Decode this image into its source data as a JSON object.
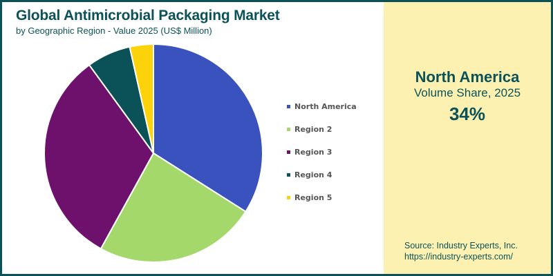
{
  "header": {
    "title": "Global Antimicrobial Packaging Market",
    "subtitle": "by Geographic Region - Value 2025 (US$ Million)"
  },
  "legend": {
    "items": [
      {
        "label": "North America",
        "color": "#3a52be"
      },
      {
        "label": "Region 2",
        "color": "#a5d86a"
      },
      {
        "label": "Region 3",
        "color": "#6d116c"
      },
      {
        "label": "Region 4",
        "color": "#0b5258"
      },
      {
        "label": "Region 5",
        "color": "#fcd20a"
      }
    ]
  },
  "highlight": {
    "region": "North America",
    "metric": "Volume Share, 2025",
    "value": "34%"
  },
  "source": {
    "line1": "Source: Industry Experts, Inc.",
    "line2": "https://industry-experts.com/"
  },
  "colors": {
    "brand": "#0b5258",
    "panel_bg": "#fdf1b2"
  },
  "chart_data": {
    "type": "pie",
    "title": "Global Antimicrobial Packaging Market",
    "subtitle": "by Geographic Region - Value 2025 (US$ Million)",
    "categories": [
      "North America",
      "Region 2",
      "Region 3",
      "Region 4",
      "Region 5"
    ],
    "values": [
      34,
      24,
      32,
      6.5,
      3.5
    ],
    "colors": [
      "#3a52be",
      "#a5d86a",
      "#6d116c",
      "#0b5258",
      "#fcd20a"
    ],
    "start_angle_deg": 0,
    "direction": "clockwise",
    "legend_position": "right",
    "annotations": [
      "North America",
      "Volume Share, 2025",
      "34%"
    ]
  }
}
